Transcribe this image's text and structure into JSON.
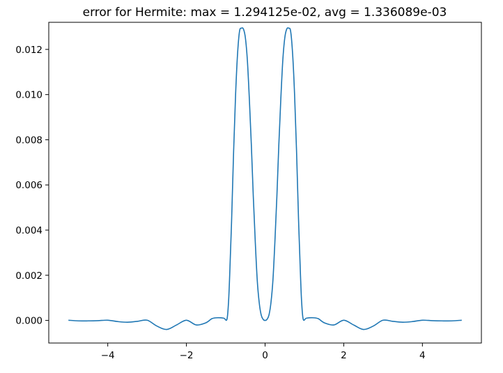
{
  "chart_data": {
    "type": "line",
    "title": "error for Hermite: max = 1.294125e-02, avg = 1.336089e-03",
    "xlabel": "",
    "ylabel": "",
    "xlim": [
      -5.5,
      5.5
    ],
    "ylim": [
      -0.001,
      0.0132
    ],
    "grid": false,
    "legend": "none",
    "color": "#1f77b4",
    "x_ticks": [
      {
        "value": -4,
        "label": "−4"
      },
      {
        "value": -2,
        "label": "−2"
      },
      {
        "value": 0,
        "label": "0"
      },
      {
        "value": 2,
        "label": "2"
      },
      {
        "value": 4,
        "label": "4"
      }
    ],
    "y_ticks": [
      {
        "value": 0.0,
        "label": "0.000"
      },
      {
        "value": 0.002,
        "label": "0.002"
      },
      {
        "value": 0.004,
        "label": "0.004"
      },
      {
        "value": 0.006,
        "label": "0.006"
      },
      {
        "value": 0.008,
        "label": "0.008"
      },
      {
        "value": 0.01,
        "label": "0.010"
      },
      {
        "value": 0.012,
        "label": "0.012"
      }
    ],
    "series": [
      {
        "x": [
          -5.0,
          -4.75,
          -4.5,
          -4.25,
          -4.0,
          -3.75,
          -3.5,
          -3.25,
          -3.0,
          -2.75,
          -2.5,
          -2.25,
          -2.0,
          -1.75,
          -1.5,
          -1.35,
          -1.2,
          -1.05,
          -0.97,
          -0.93,
          -0.9,
          -0.85,
          -0.8,
          -0.75,
          -0.7,
          -0.65,
          -0.6,
          -0.55,
          -0.5,
          -0.45,
          -0.4,
          -0.35,
          -0.3,
          -0.25,
          -0.2,
          -0.15,
          -0.1,
          -0.05,
          0.0,
          0.05,
          0.1,
          0.15,
          0.2,
          0.25,
          0.3,
          0.35,
          0.4,
          0.45,
          0.5,
          0.55,
          0.6,
          0.65,
          0.7,
          0.75,
          0.8,
          0.85,
          0.9,
          0.93,
          0.97,
          1.05,
          1.2,
          1.35,
          1.5,
          1.75,
          2.0,
          2.25,
          2.5,
          2.75,
          3.0,
          3.25,
          3.5,
          3.75,
          4.0,
          4.25,
          4.5,
          4.75,
          5.0
        ],
        "values": [
          1e-05,
          -2e-05,
          -2e-05,
          -1e-05,
          1e-05,
          -5e-05,
          -8e-05,
          -4e-05,
          1e-05,
          -0.00025,
          -0.0004,
          -0.0002,
          1e-05,
          -0.0002,
          -0.0001,
          8e-05,
          0.00012,
          0.0001,
          5e-05,
          0.0008,
          0.002,
          0.0045,
          0.0075,
          0.01,
          0.0118,
          0.0128,
          0.01294,
          0.0129,
          0.0125,
          0.0115,
          0.0098,
          0.0078,
          0.0055,
          0.0035,
          0.0018,
          0.0008,
          0.00025,
          5e-05,
          0.0,
          5e-05,
          0.00025,
          0.0008,
          0.0018,
          0.0035,
          0.0055,
          0.0078,
          0.0098,
          0.0115,
          0.0125,
          0.0129,
          0.01294,
          0.0128,
          0.0118,
          0.01,
          0.0075,
          0.0045,
          0.002,
          0.0008,
          5e-05,
          0.0001,
          0.00012,
          8e-05,
          -0.0001,
          -0.0002,
          1e-05,
          -0.0002,
          -0.0004,
          -0.00025,
          1e-05,
          -4e-05,
          -8e-05,
          -5e-05,
          1e-05,
          -1e-05,
          -2e-05,
          -2e-05,
          1e-05
        ]
      }
    ]
  }
}
